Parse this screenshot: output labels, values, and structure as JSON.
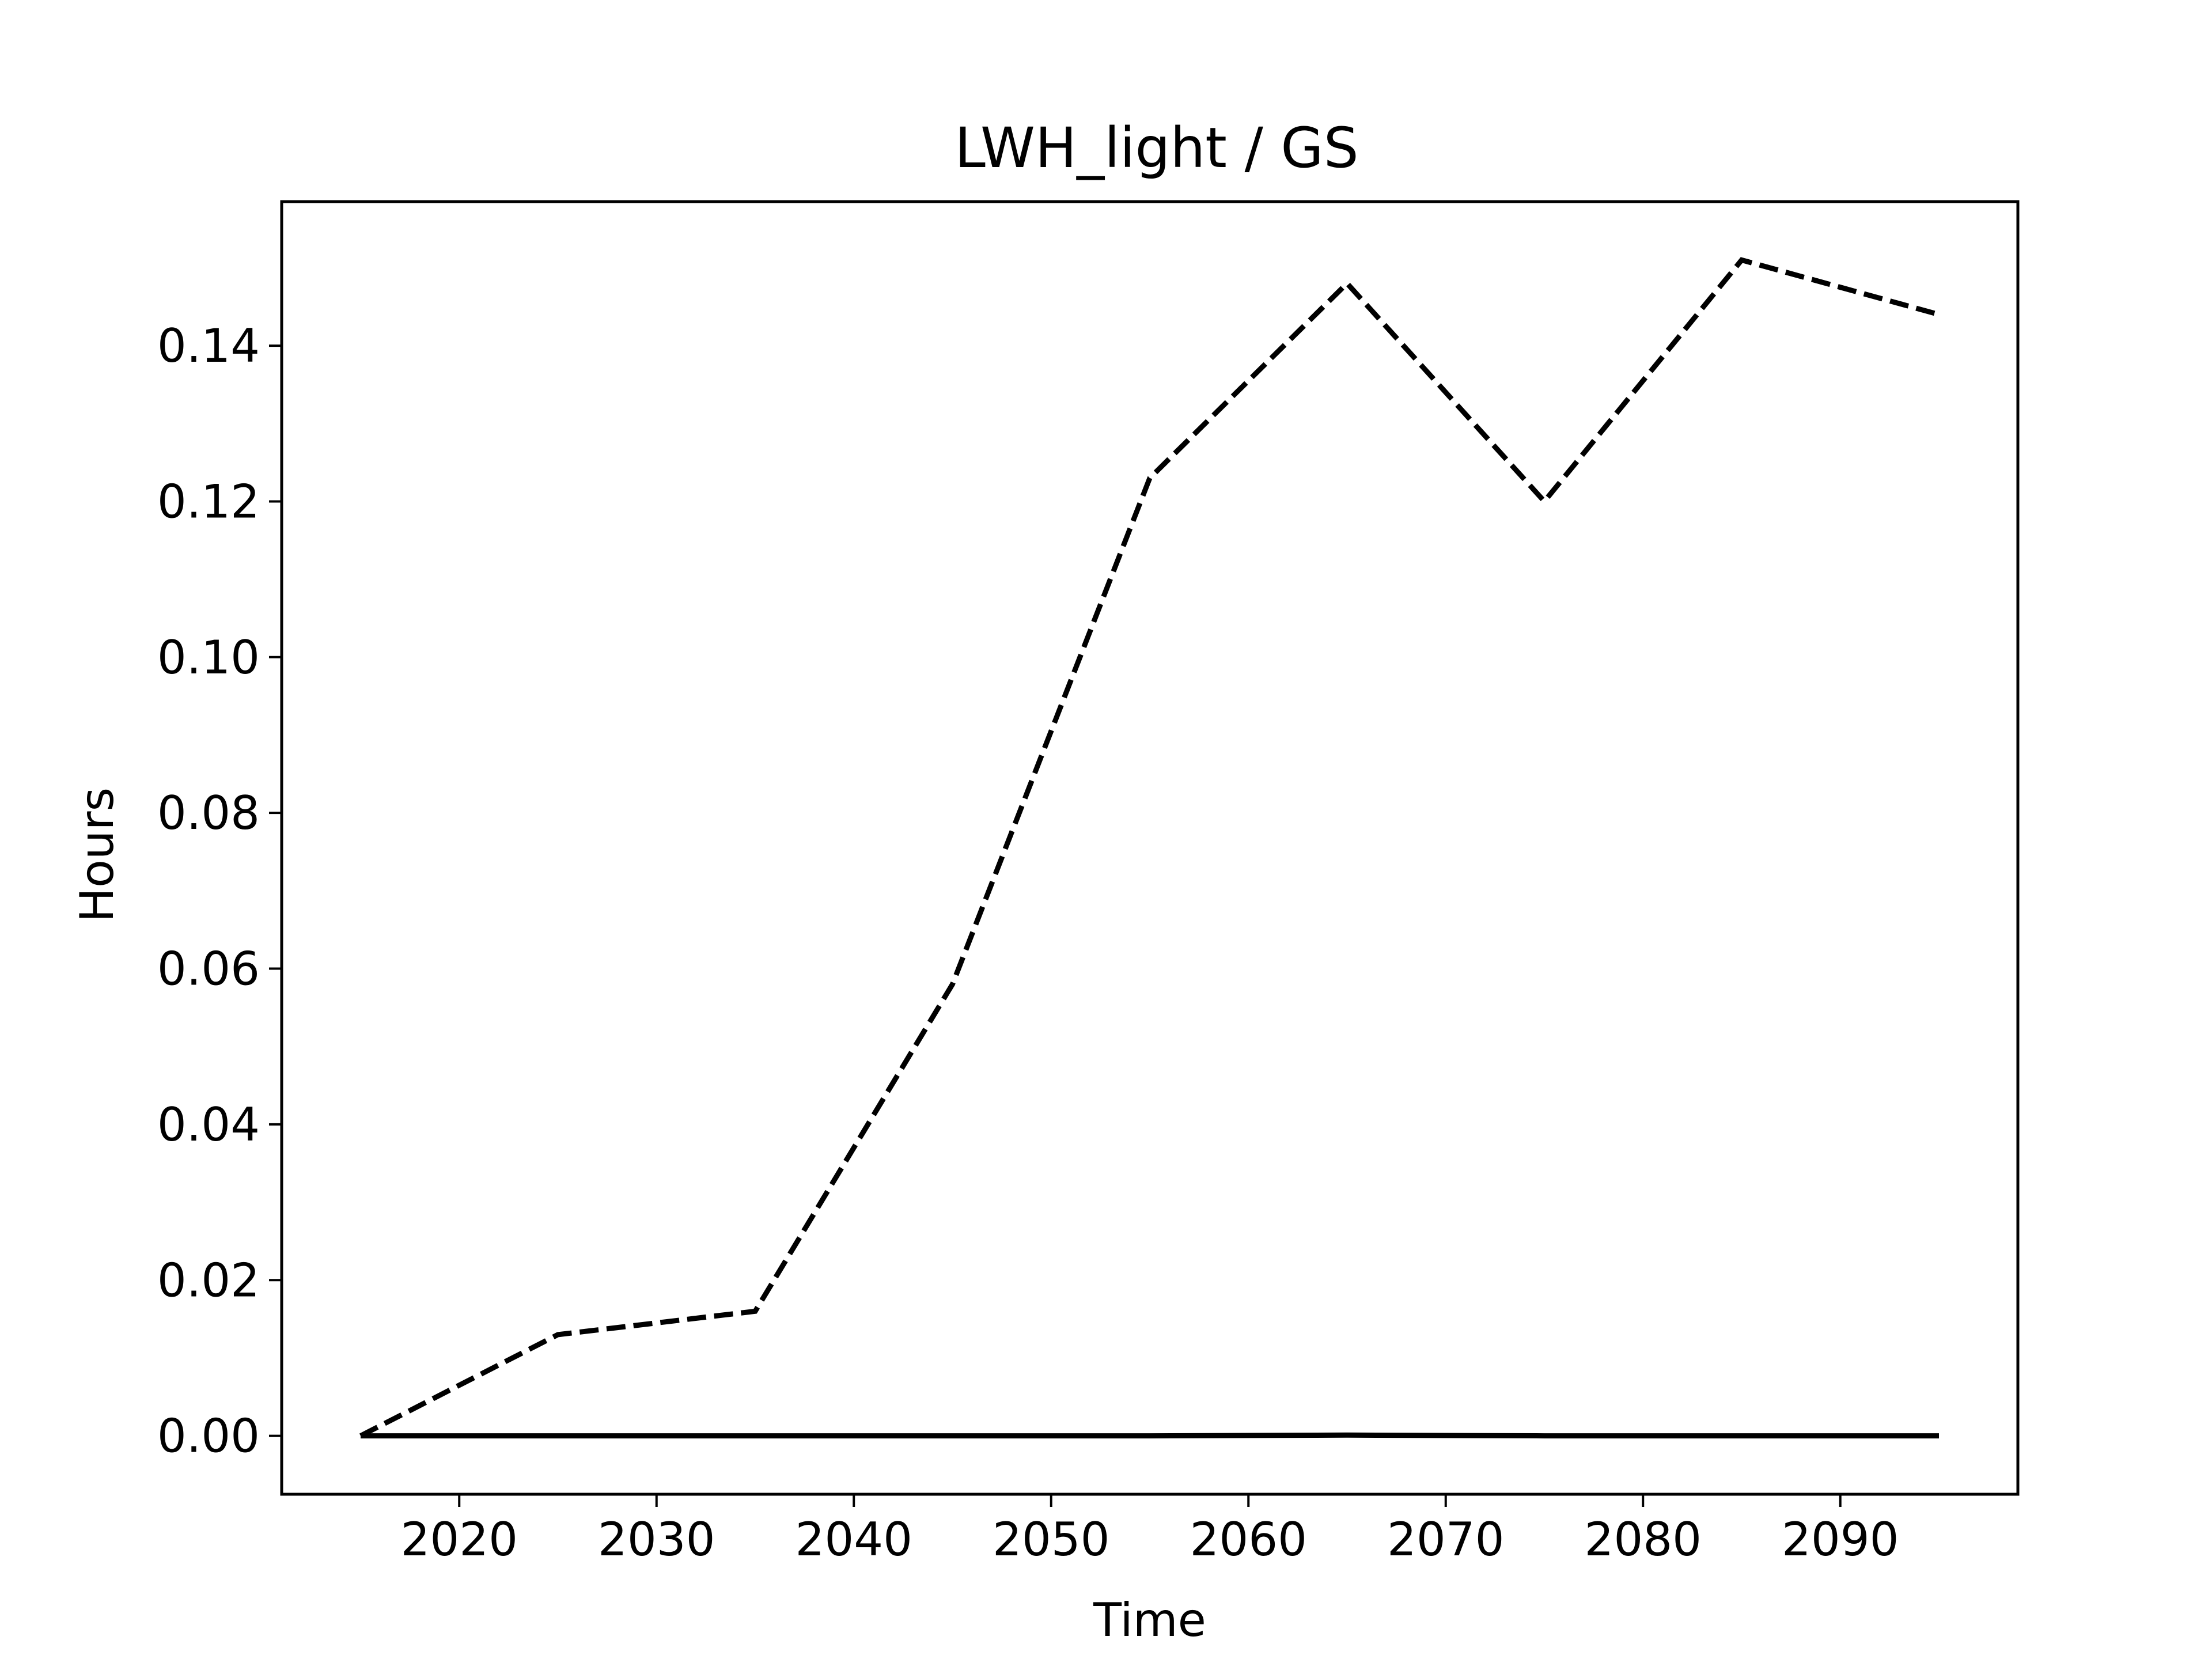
{
  "chart_data": {
    "type": "line",
    "title": "LWH_light / GS",
    "xlabel": "Time",
    "ylabel": "Hours",
    "xlim": [
      2011,
      2099
    ],
    "ylim": [
      -0.0075,
      0.1585
    ],
    "xticks": [
      2020,
      2030,
      2040,
      2050,
      2060,
      2070,
      2080,
      2090
    ],
    "xtick_labels": [
      "2020",
      "2030",
      "2040",
      "2050",
      "2060",
      "2070",
      "2080",
      "2090"
    ],
    "yticks": [
      0.0,
      0.02,
      0.04,
      0.06,
      0.08,
      0.1,
      0.12,
      0.14
    ],
    "ytick_labels": [
      "0.00",
      "0.02",
      "0.04",
      "0.06",
      "0.08",
      "0.10",
      "0.12",
      "0.14"
    ],
    "grid": false,
    "x": [
      2015,
      2025,
      2035,
      2045,
      2055,
      2065,
      2075,
      2085,
      2095
    ],
    "series": [
      {
        "style": "dashed",
        "color": "#000000",
        "values": [
          0.0,
          0.013,
          0.016,
          0.058,
          0.123,
          0.148,
          0.12,
          0.151,
          0.144
        ]
      },
      {
        "style": "solid",
        "color": "#000000",
        "values": [
          0.0,
          0.0,
          0.0,
          0.0,
          0.0,
          0.0001,
          0.0,
          0.0,
          0.0
        ]
      }
    ]
  }
}
